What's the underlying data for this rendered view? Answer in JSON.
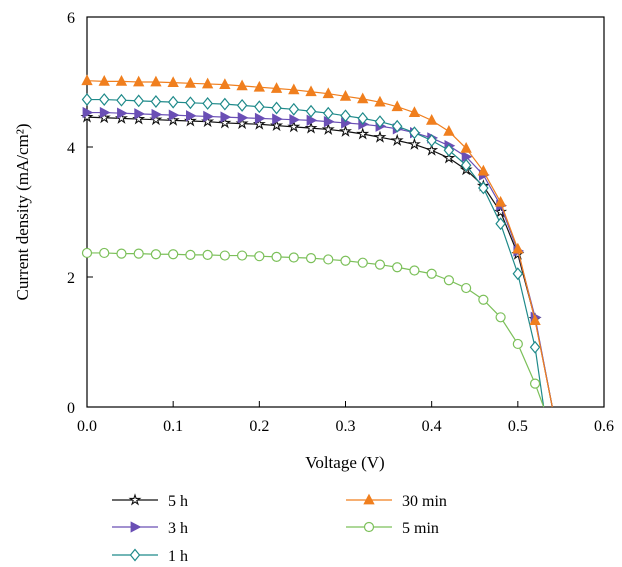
{
  "chart_data": {
    "type": "line",
    "xlabel": "Voltage (V)",
    "ylabel": "Current density (mA/cm²)",
    "xlim": [
      0,
      0.6
    ],
    "ylim": [
      0,
      6
    ],
    "xticks": [
      "0.0",
      "0.1",
      "0.2",
      "0.3",
      "0.4",
      "0.5",
      "0.6"
    ],
    "yticks": [
      "0",
      "2",
      "4",
      "6"
    ],
    "grid": false,
    "legend_position": "bottom",
    "series": [
      {
        "name": "5 h",
        "color": "#111111",
        "marker": "star",
        "x": [
          0,
          0.02,
          0.04,
          0.06,
          0.08,
          0.1,
          0.12,
          0.14,
          0.16,
          0.18,
          0.2,
          0.22,
          0.24,
          0.26,
          0.28,
          0.3,
          0.32,
          0.34,
          0.36,
          0.38,
          0.4,
          0.42,
          0.44,
          0.46,
          0.48,
          0.5,
          0.52,
          0.54
        ],
        "y": [
          4.46,
          4.45,
          4.44,
          4.43,
          4.42,
          4.41,
          4.4,
          4.39,
          4.37,
          4.36,
          4.35,
          4.33,
          4.31,
          4.29,
          4.27,
          4.24,
          4.2,
          4.15,
          4.1,
          4.04,
          3.95,
          3.83,
          3.65,
          3.4,
          3.0,
          2.35,
          1.35,
          0.0
        ]
      },
      {
        "name": "3 h",
        "color": "#6a4fb5",
        "marker": "triangle-right",
        "x": [
          0,
          0.02,
          0.04,
          0.06,
          0.08,
          0.1,
          0.12,
          0.14,
          0.16,
          0.18,
          0.2,
          0.22,
          0.24,
          0.26,
          0.28,
          0.3,
          0.32,
          0.34,
          0.36,
          0.38,
          0.4,
          0.42,
          0.44,
          0.46,
          0.48,
          0.5,
          0.52,
          0.54
        ],
        "y": [
          4.53,
          4.53,
          4.52,
          4.51,
          4.5,
          4.49,
          4.48,
          4.47,
          4.46,
          4.45,
          4.44,
          4.43,
          4.42,
          4.41,
          4.39,
          4.37,
          4.35,
          4.32,
          4.28,
          4.22,
          4.14,
          4.02,
          3.85,
          3.57,
          3.1,
          2.4,
          1.38,
          0.0
        ]
      },
      {
        "name": "1 h",
        "color": "#1f8a8a",
        "marker": "diamond",
        "x": [
          0,
          0.02,
          0.04,
          0.06,
          0.08,
          0.1,
          0.12,
          0.14,
          0.16,
          0.18,
          0.2,
          0.22,
          0.24,
          0.26,
          0.28,
          0.3,
          0.32,
          0.34,
          0.36,
          0.38,
          0.4,
          0.42,
          0.44,
          0.46,
          0.48,
          0.5,
          0.52,
          0.53
        ],
        "y": [
          4.73,
          4.73,
          4.72,
          4.71,
          4.7,
          4.69,
          4.68,
          4.67,
          4.66,
          4.64,
          4.62,
          4.6,
          4.58,
          4.55,
          4.52,
          4.48,
          4.44,
          4.39,
          4.32,
          4.22,
          4.1,
          3.95,
          3.72,
          3.37,
          2.82,
          2.05,
          0.92,
          0.0
        ]
      },
      {
        "name": "30 min",
        "color": "#f07f1e",
        "marker": "triangle-up",
        "x": [
          0,
          0.02,
          0.04,
          0.06,
          0.08,
          0.1,
          0.12,
          0.14,
          0.16,
          0.18,
          0.2,
          0.22,
          0.24,
          0.26,
          0.28,
          0.3,
          0.32,
          0.34,
          0.36,
          0.38,
          0.4,
          0.42,
          0.44,
          0.46,
          0.48,
          0.5,
          0.52,
          0.54
        ],
        "y": [
          5.02,
          5.01,
          5.01,
          5.0,
          5.0,
          4.99,
          4.98,
          4.97,
          4.96,
          4.94,
          4.92,
          4.9,
          4.88,
          4.85,
          4.82,
          4.78,
          4.74,
          4.69,
          4.62,
          4.53,
          4.41,
          4.24,
          3.98,
          3.63,
          3.15,
          2.43,
          1.33,
          0.0
        ]
      },
      {
        "name": "5 min",
        "color": "#7cc05a",
        "marker": "circle",
        "x": [
          0,
          0.02,
          0.04,
          0.06,
          0.08,
          0.1,
          0.12,
          0.14,
          0.16,
          0.18,
          0.2,
          0.22,
          0.24,
          0.26,
          0.28,
          0.3,
          0.32,
          0.34,
          0.36,
          0.38,
          0.4,
          0.42,
          0.44,
          0.46,
          0.48,
          0.5,
          0.52,
          0.53
        ],
        "y": [
          2.37,
          2.37,
          2.36,
          2.36,
          2.35,
          2.35,
          2.34,
          2.34,
          2.33,
          2.33,
          2.32,
          2.31,
          2.3,
          2.29,
          2.27,
          2.25,
          2.22,
          2.19,
          2.15,
          2.1,
          2.05,
          1.95,
          1.83,
          1.65,
          1.38,
          0.97,
          0.36,
          0.0
        ]
      }
    ]
  }
}
